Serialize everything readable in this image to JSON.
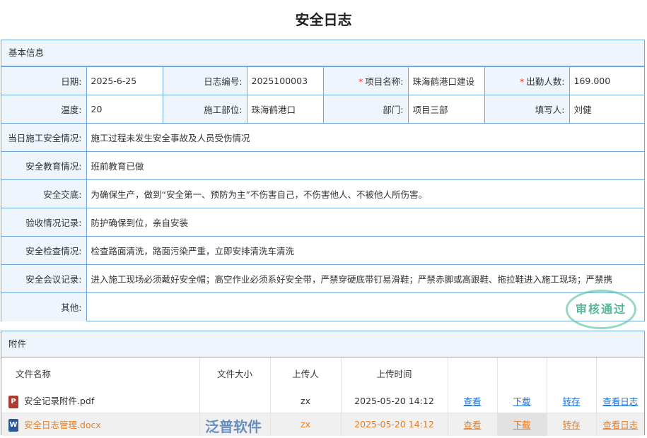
{
  "title": "安全日志",
  "basic": {
    "section": "基本信息",
    "row1": [
      {
        "label": "日期:",
        "value": "2025-6-25"
      },
      {
        "label": "日志编号:",
        "value": "2025100003"
      },
      {
        "label": "项目名称:",
        "value": "珠海鹤港口建设",
        "required": true
      },
      {
        "label": "出勤人数:",
        "value": "169.000",
        "required": true
      }
    ],
    "row2": [
      {
        "label": "温度:",
        "value": "20"
      },
      {
        "label": "施工部位:",
        "value": "珠海鹤港口"
      },
      {
        "label": "部门:",
        "value": "项目三部"
      },
      {
        "label": "填写人:",
        "value": "刘健"
      }
    ],
    "rows": [
      {
        "label": "当日施工安全情况:",
        "value": "施工过程未发生安全事故及人员受伤情况"
      },
      {
        "label": "安全教育情况:",
        "value": "班前教育已做"
      },
      {
        "label": "安全交底:",
        "value": "为确保生产，做到“安全第一、预防为主”不伤害自己，不伤害他人、不被他人所伤害。"
      },
      {
        "label": "验收情况记录:",
        "value": "防护确保到位，亲自安装"
      },
      {
        "label": "安全检查情况:",
        "value": "检查路面清洗，路面污染严重，立即安排清洗车清洗"
      },
      {
        "label": "安全会议记录:",
        "value": "进入施工现场必须戴好安全帽；高空作业必须系好安全带，严禁穿硬底带钉易滑鞋；严禁赤脚或高跟鞋、拖拉鞋进入施工现场；严禁携"
      },
      {
        "label": "其他:",
        "value": ""
      }
    ]
  },
  "attachments": {
    "section": "附件",
    "headers": [
      "文件名称",
      "文件大小",
      "上传人",
      "上传时间"
    ],
    "files": [
      {
        "name": "安全记录附件.pdf",
        "icon": "pdf-icon",
        "size": "",
        "uploader": "zx",
        "time": "2025-05-20 14:12"
      },
      {
        "name": "安全日志管理.docx",
        "icon": "word-icon",
        "size": "",
        "uploader": "zx",
        "time": "2025-05-20 14:12"
      }
    ],
    "actions": [
      "查看",
      "下载",
      "转存",
      "查看日志"
    ]
  },
  "stamp": "审核通过",
  "watermark": "泛普软件"
}
